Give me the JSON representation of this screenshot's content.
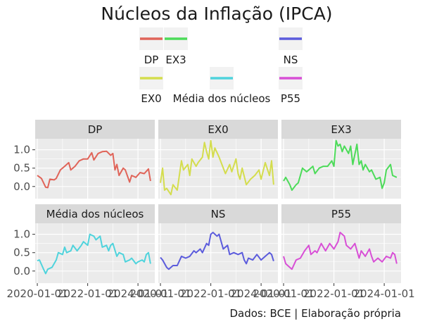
{
  "chart_data": {
    "type": "line",
    "title": "Núcleos da Inflação (IPCA)",
    "caption": "Dados: BCE | Elaboração própria",
    "xlabel": "",
    "ylabel": "",
    "ylim": [
      -0.33,
      1.3
    ],
    "grid": true,
    "legend_position": "top",
    "y_ticks": [
      0.0,
      0.5,
      1.0
    ],
    "y_tick_labels": [
      "0.0",
      "0.5",
      "1.0"
    ],
    "x_ticks": [
      "2020-01-01",
      "2022-01-01",
      "2024-01-01"
    ],
    "x_tick_labels": [
      "2020-01-01",
      "2022-01-01",
      "2024-01-01"
    ],
    "x_range": [
      "2019-12-01",
      "2024-09-01"
    ],
    "series_order": [
      "DP",
      "EX0",
      "EX3",
      "Média dos núcleos",
      "NS",
      "P55"
    ],
    "legend_layout": [
      [
        "DP",
        "EX3",
        "",
        "NS"
      ],
      [
        "EX0",
        "Média dos núcleos",
        "P55"
      ]
    ],
    "series": [
      {
        "name": "DP",
        "color": "#e06459",
        "points": [
          [
            "2020-01-01",
            0.3
          ],
          [
            "2020-03-01",
            0.22
          ],
          [
            "2020-05-01",
            -0.02
          ],
          [
            "2020-06-01",
            -0.03
          ],
          [
            "2020-07-01",
            0.2
          ],
          [
            "2020-09-01",
            0.18
          ],
          [
            "2020-10-01",
            0.22
          ],
          [
            "2020-12-01",
            0.45
          ],
          [
            "2021-02-01",
            0.55
          ],
          [
            "2021-04-01",
            0.65
          ],
          [
            "2021-05-01",
            0.45
          ],
          [
            "2021-07-01",
            0.55
          ],
          [
            "2021-09-01",
            0.7
          ],
          [
            "2021-11-01",
            0.75
          ],
          [
            "2022-01-01",
            0.75
          ],
          [
            "2022-03-01",
            0.92
          ],
          [
            "2022-04-01",
            0.72
          ],
          [
            "2022-06-01",
            0.9
          ],
          [
            "2022-08-01",
            0.95
          ],
          [
            "2022-10-01",
            0.96
          ],
          [
            "2022-12-01",
            0.85
          ],
          [
            "2023-01-01",
            0.9
          ],
          [
            "2023-02-01",
            0.45
          ],
          [
            "2023-03-01",
            0.6
          ],
          [
            "2023-04-01",
            0.3
          ],
          [
            "2023-06-01",
            0.5
          ],
          [
            "2023-07-01",
            0.45
          ],
          [
            "2023-09-01",
            0.12
          ],
          [
            "2023-10-01",
            0.3
          ],
          [
            "2023-12-01",
            0.25
          ],
          [
            "2024-02-01",
            0.38
          ],
          [
            "2024-04-01",
            0.35
          ],
          [
            "2024-06-01",
            0.48
          ],
          [
            "2024-07-01",
            0.15
          ]
        ]
      },
      {
        "name": "EX0",
        "color": "#d4dd4d",
        "points": [
          [
            "2020-01-01",
            0.1
          ],
          [
            "2020-02-01",
            0.5
          ],
          [
            "2020-03-01",
            -0.1
          ],
          [
            "2020-04-01",
            -0.05
          ],
          [
            "2020-06-01",
            -0.22
          ],
          [
            "2020-07-01",
            0.05
          ],
          [
            "2020-09-01",
            -0.1
          ],
          [
            "2020-11-01",
            0.7
          ],
          [
            "2020-12-01",
            0.45
          ],
          [
            "2021-02-01",
            0.6
          ],
          [
            "2021-03-01",
            0.3
          ],
          [
            "2021-04-01",
            0.75
          ],
          [
            "2021-06-01",
            0.55
          ],
          [
            "2021-07-01",
            0.65
          ],
          [
            "2021-09-01",
            0.8
          ],
          [
            "2021-10-01",
            1.2
          ],
          [
            "2021-11-01",
            0.95
          ],
          [
            "2021-12-01",
            0.75
          ],
          [
            "2022-01-01",
            1.25
          ],
          [
            "2022-02-01",
            0.8
          ],
          [
            "2022-03-01",
            1.05
          ],
          [
            "2022-05-01",
            0.8
          ],
          [
            "2022-06-01",
            0.65
          ],
          [
            "2022-08-01",
            0.35
          ],
          [
            "2022-10-01",
            0.6
          ],
          [
            "2022-11-01",
            0.4
          ],
          [
            "2023-01-01",
            0.75
          ],
          [
            "2023-02-01",
            0.35
          ],
          [
            "2023-03-01",
            0.2
          ],
          [
            "2023-04-01",
            0.5
          ],
          [
            "2023-06-01",
            0.05
          ],
          [
            "2023-08-01",
            0.2
          ],
          [
            "2023-10-01",
            0.3
          ],
          [
            "2023-12-01",
            0.45
          ],
          [
            "2024-01-01",
            0.2
          ],
          [
            "2024-03-01",
            0.65
          ],
          [
            "2024-05-01",
            0.3
          ],
          [
            "2024-06-01",
            0.7
          ],
          [
            "2024-07-01",
            0.05
          ]
        ]
      },
      {
        "name": "EX3",
        "color": "#4cdb59",
        "points": [
          [
            "2020-01-01",
            0.15
          ],
          [
            "2020-02-01",
            0.25
          ],
          [
            "2020-04-01",
            0.05
          ],
          [
            "2020-05-01",
            -0.1
          ],
          [
            "2020-07-01",
            0.05
          ],
          [
            "2020-08-01",
            0.1
          ],
          [
            "2020-10-01",
            0.5
          ],
          [
            "2020-12-01",
            0.4
          ],
          [
            "2021-01-01",
            0.45
          ],
          [
            "2021-03-01",
            0.55
          ],
          [
            "2021-04-01",
            0.35
          ],
          [
            "2021-06-01",
            0.5
          ],
          [
            "2021-08-01",
            0.55
          ],
          [
            "2021-10-01",
            0.55
          ],
          [
            "2021-12-01",
            0.7
          ],
          [
            "2022-01-01",
            0.55
          ],
          [
            "2022-02-01",
            1.25
          ],
          [
            "2022-03-01",
            1.1
          ],
          [
            "2022-04-01",
            1.15
          ],
          [
            "2022-05-01",
            0.95
          ],
          [
            "2022-06-01",
            1.1
          ],
          [
            "2022-08-01",
            0.9
          ],
          [
            "2022-09-01",
            1.1
          ],
          [
            "2022-10-01",
            0.6
          ],
          [
            "2022-12-01",
            1.15
          ],
          [
            "2023-01-01",
            0.6
          ],
          [
            "2023-02-01",
            0.7
          ],
          [
            "2023-03-01",
            0.45
          ],
          [
            "2023-04-01",
            0.6
          ],
          [
            "2023-06-01",
            0.4
          ],
          [
            "2023-07-01",
            0.45
          ],
          [
            "2023-09-01",
            0.2
          ],
          [
            "2023-11-01",
            0.25
          ],
          [
            "2023-12-01",
            -0.05
          ],
          [
            "2024-01-01",
            0.1
          ],
          [
            "2024-02-01",
            0.45
          ],
          [
            "2024-04-01",
            0.6
          ],
          [
            "2024-05-01",
            0.3
          ],
          [
            "2024-07-01",
            0.25
          ]
        ]
      },
      {
        "name": "Média dos núcleos",
        "color": "#4fd3dc",
        "points": [
          [
            "2020-01-01",
            0.28
          ],
          [
            "2020-02-01",
            0.3
          ],
          [
            "2020-04-01",
            0.05
          ],
          [
            "2020-05-01",
            -0.07
          ],
          [
            "2020-06-01",
            0.05
          ],
          [
            "2020-08-01",
            0.1
          ],
          [
            "2020-10-01",
            0.3
          ],
          [
            "2020-11-01",
            0.5
          ],
          [
            "2021-01-01",
            0.45
          ],
          [
            "2021-02-01",
            0.65
          ],
          [
            "2021-03-01",
            0.5
          ],
          [
            "2021-05-01",
            0.55
          ],
          [
            "2021-06-01",
            0.7
          ],
          [
            "2021-08-01",
            0.55
          ],
          [
            "2021-10-01",
            0.7
          ],
          [
            "2021-11-01",
            0.8
          ],
          [
            "2022-01-01",
            0.7
          ],
          [
            "2022-02-01",
            1.0
          ],
          [
            "2022-04-01",
            0.95
          ],
          [
            "2022-05-01",
            0.85
          ],
          [
            "2022-07-01",
            0.95
          ],
          [
            "2022-08-01",
            0.65
          ],
          [
            "2022-10-01",
            0.7
          ],
          [
            "2022-11-01",
            0.55
          ],
          [
            "2022-12-01",
            0.7
          ],
          [
            "2023-01-01",
            0.75
          ],
          [
            "2023-03-01",
            0.4
          ],
          [
            "2023-04-01",
            0.5
          ],
          [
            "2023-06-01",
            0.45
          ],
          [
            "2023-07-01",
            0.25
          ],
          [
            "2023-09-01",
            0.3
          ],
          [
            "2023-10-01",
            0.35
          ],
          [
            "2023-12-01",
            0.2
          ],
          [
            "2024-01-01",
            0.25
          ],
          [
            "2024-03-01",
            0.3
          ],
          [
            "2024-04-01",
            0.25
          ],
          [
            "2024-05-01",
            0.45
          ],
          [
            "2024-06-01",
            0.5
          ],
          [
            "2024-07-01",
            0.2
          ]
        ]
      },
      {
        "name": "NS",
        "color": "#5b5bdc",
        "points": [
          [
            "2020-01-01",
            0.37
          ],
          [
            "2020-02-01",
            0.3
          ],
          [
            "2020-04-01",
            0.1
          ],
          [
            "2020-05-01",
            0.05
          ],
          [
            "2020-07-01",
            0.15
          ],
          [
            "2020-09-01",
            0.15
          ],
          [
            "2020-11-01",
            0.4
          ],
          [
            "2021-01-01",
            0.35
          ],
          [
            "2021-03-01",
            0.4
          ],
          [
            "2021-05-01",
            0.55
          ],
          [
            "2021-06-01",
            0.5
          ],
          [
            "2021-08-01",
            0.6
          ],
          [
            "2021-09-01",
            0.5
          ],
          [
            "2021-11-01",
            0.75
          ],
          [
            "2021-12-01",
            0.7
          ],
          [
            "2022-01-01",
            1.0
          ],
          [
            "2022-02-01",
            1.05
          ],
          [
            "2022-04-01",
            0.95
          ],
          [
            "2022-05-01",
            1.0
          ],
          [
            "2022-07-01",
            0.6
          ],
          [
            "2022-09-01",
            0.7
          ],
          [
            "2022-10-01",
            0.45
          ],
          [
            "2022-12-01",
            0.5
          ],
          [
            "2023-02-01",
            0.45
          ],
          [
            "2023-04-01",
            0.5
          ],
          [
            "2023-05-01",
            0.3
          ],
          [
            "2023-06-01",
            0.2
          ],
          [
            "2023-07-01",
            0.35
          ],
          [
            "2023-09-01",
            0.3
          ],
          [
            "2023-11-01",
            0.45
          ],
          [
            "2024-01-01",
            0.3
          ],
          [
            "2024-03-01",
            0.4
          ],
          [
            "2024-05-01",
            0.5
          ],
          [
            "2024-06-01",
            0.45
          ],
          [
            "2024-07-01",
            0.27
          ]
        ]
      },
      {
        "name": "P55",
        "color": "#d84fd6",
        "points": [
          [
            "2020-01-01",
            0.4
          ],
          [
            "2020-02-01",
            0.2
          ],
          [
            "2020-04-01",
            0.1
          ],
          [
            "2020-05-01",
            0.05
          ],
          [
            "2020-07-01",
            0.3
          ],
          [
            "2020-09-01",
            0.35
          ],
          [
            "2020-11-01",
            0.55
          ],
          [
            "2021-01-01",
            0.7
          ],
          [
            "2021-02-01",
            0.45
          ],
          [
            "2021-04-01",
            0.55
          ],
          [
            "2021-05-01",
            0.5
          ],
          [
            "2021-07-01",
            0.75
          ],
          [
            "2021-09-01",
            0.55
          ],
          [
            "2021-11-01",
            0.75
          ],
          [
            "2022-01-01",
            0.6
          ],
          [
            "2022-03-01",
            0.8
          ],
          [
            "2022-04-01",
            1.05
          ],
          [
            "2022-06-01",
            0.95
          ],
          [
            "2022-07-01",
            0.7
          ],
          [
            "2022-09-01",
            0.6
          ],
          [
            "2022-11-01",
            0.75
          ],
          [
            "2023-01-01",
            0.35
          ],
          [
            "2023-02-01",
            0.55
          ],
          [
            "2023-04-01",
            0.4
          ],
          [
            "2023-06-01",
            0.6
          ],
          [
            "2023-07-01",
            0.4
          ],
          [
            "2023-08-01",
            0.25
          ],
          [
            "2023-10-01",
            0.35
          ],
          [
            "2023-12-01",
            0.25
          ],
          [
            "2024-02-01",
            0.4
          ],
          [
            "2024-04-01",
            0.35
          ],
          [
            "2024-05-01",
            0.5
          ],
          [
            "2024-06-01",
            0.45
          ],
          [
            "2024-07-01",
            0.2
          ]
        ]
      }
    ]
  }
}
